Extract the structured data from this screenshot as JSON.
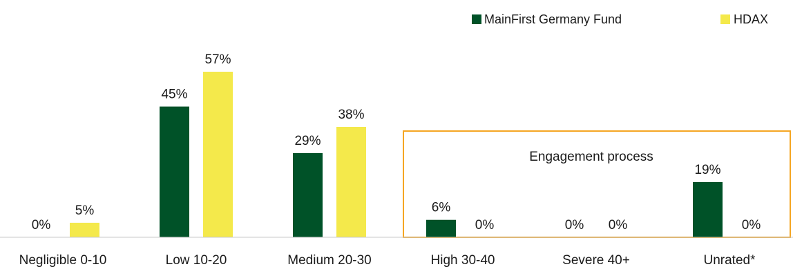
{
  "chart_data": {
    "type": "bar",
    "categories": [
      "Negligible 0-10",
      "Low 10-20",
      "Medium 20-30",
      "High 30-40",
      "Severe 40+",
      "Unrated*"
    ],
    "series": [
      {
        "name": "MainFirst Germany Fund",
        "values": [
          0,
          45,
          29,
          6,
          0,
          19
        ],
        "labels": [
          "0%",
          "45%",
          "29%",
          "6%",
          "0%",
          "19%"
        ]
      },
      {
        "name": "HDAX",
        "values": [
          5,
          57,
          38,
          0,
          0,
          0
        ],
        "labels": [
          "5%",
          "57%",
          "38%",
          "0%",
          "0%",
          "0%"
        ]
      }
    ],
    "ylim": [
      0,
      60
    ],
    "unit": "%",
    "grid": false,
    "legend_position": "top-right",
    "annotation": {
      "text": "Engagement process",
      "spans_categories": [
        "High 30-40",
        "Severe 40+",
        "Unrated*"
      ],
      "border_color": "#F5A623"
    },
    "colors": {
      "MainFirst Germany Fund": "#005228",
      "HDAX": "#F4E94B"
    }
  }
}
